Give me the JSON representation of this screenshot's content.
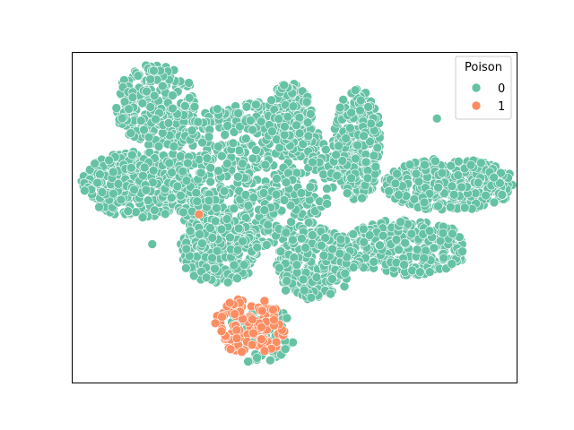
{
  "chart_data": {
    "type": "scatter",
    "title": "",
    "xlabel": "",
    "ylabel": "",
    "ticks_shown": false,
    "grid": false,
    "legend": {
      "title": "Poison",
      "placement": "top-right",
      "entries": [
        {
          "label": "0",
          "color": "#66c2a5"
        },
        {
          "label": "1",
          "color": "#fc8d62"
        }
      ]
    },
    "xlim": [
      0,
      100
    ],
    "ylim": [
      0,
      100
    ],
    "point_edge_color": "#ffffff",
    "series": [
      {
        "name": "0",
        "color": "#66c2a5",
        "clusters": [
          {
            "cx": 19.0,
            "cy": 84.0,
            "rx": 9.5,
            "ry": 12.5,
            "n": 240
          },
          {
            "cx": 15.0,
            "cy": 60.0,
            "rx": 13.0,
            "ry": 10.0,
            "n": 320
          },
          {
            "cx": 40.0,
            "cy": 63.0,
            "rx": 19.0,
            "ry": 22.0,
            "n": 650
          },
          {
            "cx": 49.0,
            "cy": 80.0,
            "rx": 5.0,
            "ry": 11.0,
            "n": 160
          },
          {
            "cx": 64.0,
            "cy": 72.0,
            "rx": 5.5,
            "ry": 17.0,
            "n": 280
          },
          {
            "cx": 85.0,
            "cy": 60.0,
            "rx": 15.0,
            "ry": 8.0,
            "n": 340
          },
          {
            "cx": 75.0,
            "cy": 41.0,
            "rx": 14.0,
            "ry": 8.5,
            "n": 300
          },
          {
            "cx": 55.0,
            "cy": 36.0,
            "rx": 9.0,
            "ry": 11.0,
            "n": 260
          },
          {
            "cx": 33.0,
            "cy": 40.0,
            "rx": 9.0,
            "ry": 10.0,
            "n": 220
          },
          {
            "cx": 42.0,
            "cy": 15.0,
            "rx": 8.0,
            "ry": 9.0,
            "n": 70
          }
        ],
        "extra_points": [
          [
            82.0,
            80.0
          ],
          [
            18.0,
            42.0
          ],
          [
            48.0,
            28.0
          ]
        ]
      },
      {
        "name": "1",
        "color": "#fc8d62",
        "clusters": [
          {
            "cx": 40.0,
            "cy": 17.0,
            "rx": 8.0,
            "ry": 9.0,
            "n": 120
          }
        ],
        "extra_points": [
          [
            28.5,
            51.0
          ]
        ]
      }
    ]
  }
}
